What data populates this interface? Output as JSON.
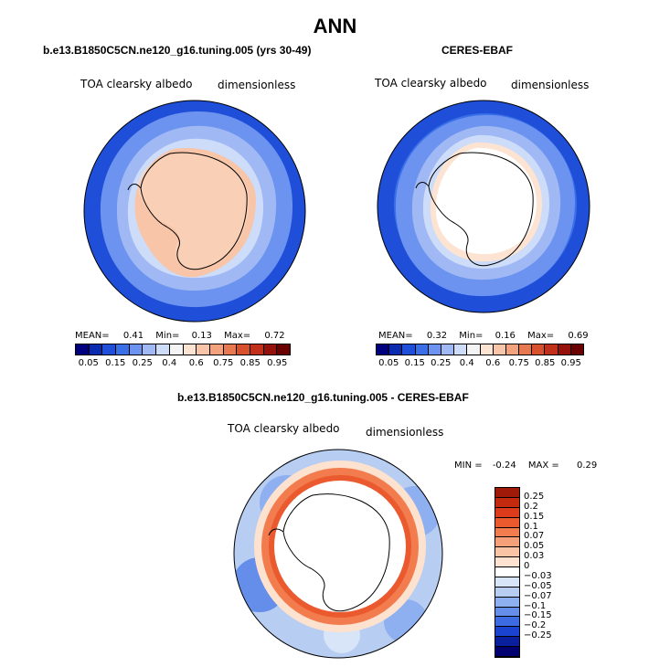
{
  "title": "ANN",
  "panels": [
    {
      "subtitle": "b.e13.B1850C5CN.ne120_g16.tuning.005 (yrs 30-49)",
      "left_label": "TOA clearsky albedo",
      "right_label": "dimensionless",
      "mean_label": "MEAN=",
      "mean": "0.41",
      "min_label": "Min=",
      "min": "0.13",
      "max_label": "Max=",
      "max": "0.72"
    },
    {
      "subtitle": "CERES-EBAF",
      "left_label": "TOA clearsky albedo",
      "right_label": "dimensionless",
      "mean_label": "MEAN=",
      "mean": "0.32",
      "min_label": "Min=",
      "min": "0.16",
      "max_label": "Max=",
      "max": "0.69"
    }
  ],
  "abs_colorbar": {
    "colors": [
      "#00007f",
      "#0a2bb0",
      "#1f4fd8",
      "#3a6fe8",
      "#6b93ef",
      "#a0b9f4",
      "#cddcf8",
      "#f4f4f4",
      "#fde3d2",
      "#f8c5a8",
      "#f2a27c",
      "#e87850",
      "#d8502e",
      "#c0301a",
      "#96100c",
      "#6a0000"
    ],
    "tick_labels": [
      "0.05",
      "0.15",
      "0.25",
      "0.4",
      "0.6",
      "0.75",
      "0.85",
      "0.95"
    ]
  },
  "diff_panel": {
    "subtitle": "b.e13.B1850C5CN.ne120_g16.tuning.005 - CERES-EBAF",
    "left_label": "TOA clearsky albedo",
    "right_label": "dimensionless",
    "min_label": "MIN =",
    "min": "-0.24",
    "max_label": "MAX =",
    "max": "0.29"
  },
  "diff_colorbar": {
    "colors": [
      "#a01a0a",
      "#c42a10",
      "#dc3c1c",
      "#ea5a2e",
      "#f27c4e",
      "#f6a079",
      "#f9c3a5",
      "#fce2cf",
      "#ffffff",
      "#d8e4f7",
      "#b7cdf2",
      "#8eaff0",
      "#648eea",
      "#3c6be2",
      "#1a44d0",
      "#0a1f9e",
      "#000070"
    ],
    "tick_labels": [
      "0.25",
      "0.2",
      "0.15",
      "0.1",
      "0.07",
      "0.05",
      "0.03",
      "0",
      "−0.03",
      "−0.05",
      "−0.07",
      "−0.1",
      "−0.15",
      "−0.2",
      "−0.25"
    ]
  }
}
